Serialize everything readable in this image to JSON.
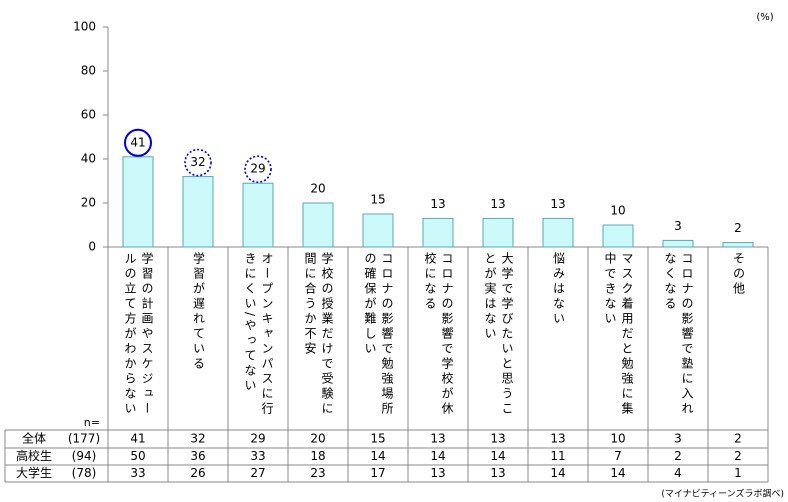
{
  "chart_data": {
    "type": "bar",
    "unit": "(%)",
    "categories": [
      "学習の計画やスケジュールの立て方がわからない",
      "学習が遅れている",
      "オープンキャンパスに行きにくい/やってない",
      "学校の授業だけで受験に間に合うか不安",
      "コロナの影響で勉強場所の確保が難しい",
      "コロナの影響で学校が休校になる",
      "大学で学びたいと思うことが実はない",
      "悩みはない",
      "マスク着用だと勉強に集中できない",
      "コロナの影響で塾に入れなくなる",
      "その他"
    ],
    "values": [
      41,
      32,
      29,
      20,
      15,
      13,
      13,
      13,
      10,
      3,
      2
    ],
    "color": "#ccfafa",
    "edge_color": "#5aa6b4",
    "ylim": [
      0,
      100
    ],
    "yticks": [
      0,
      20,
      40,
      60,
      80,
      100
    ],
    "circled_solid": [
      0
    ],
    "circled_dotted": [
      1,
      2
    ],
    "circle_color": "#0000cc"
  },
  "table": {
    "n_label": "n=",
    "rows": [
      {
        "label": "全体",
        "n": "(177)",
        "values": [
          "41",
          "32",
          "29",
          "20",
          "15",
          "13",
          "13",
          "13",
          "10",
          "3",
          "2"
        ]
      },
      {
        "label": "高校生",
        "n": "(94)",
        "values": [
          "50",
          "36",
          "33",
          "18",
          "14",
          "14",
          "14",
          "11",
          "7",
          "2",
          "2"
        ]
      },
      {
        "label": "大学生",
        "n": "(78)",
        "values": [
          "33",
          "26",
          "27",
          "23",
          "17",
          "13",
          "13",
          "14",
          "14",
          "4",
          "1"
        ]
      }
    ]
  },
  "source": "(マイナビティーンズラボ調べ)"
}
